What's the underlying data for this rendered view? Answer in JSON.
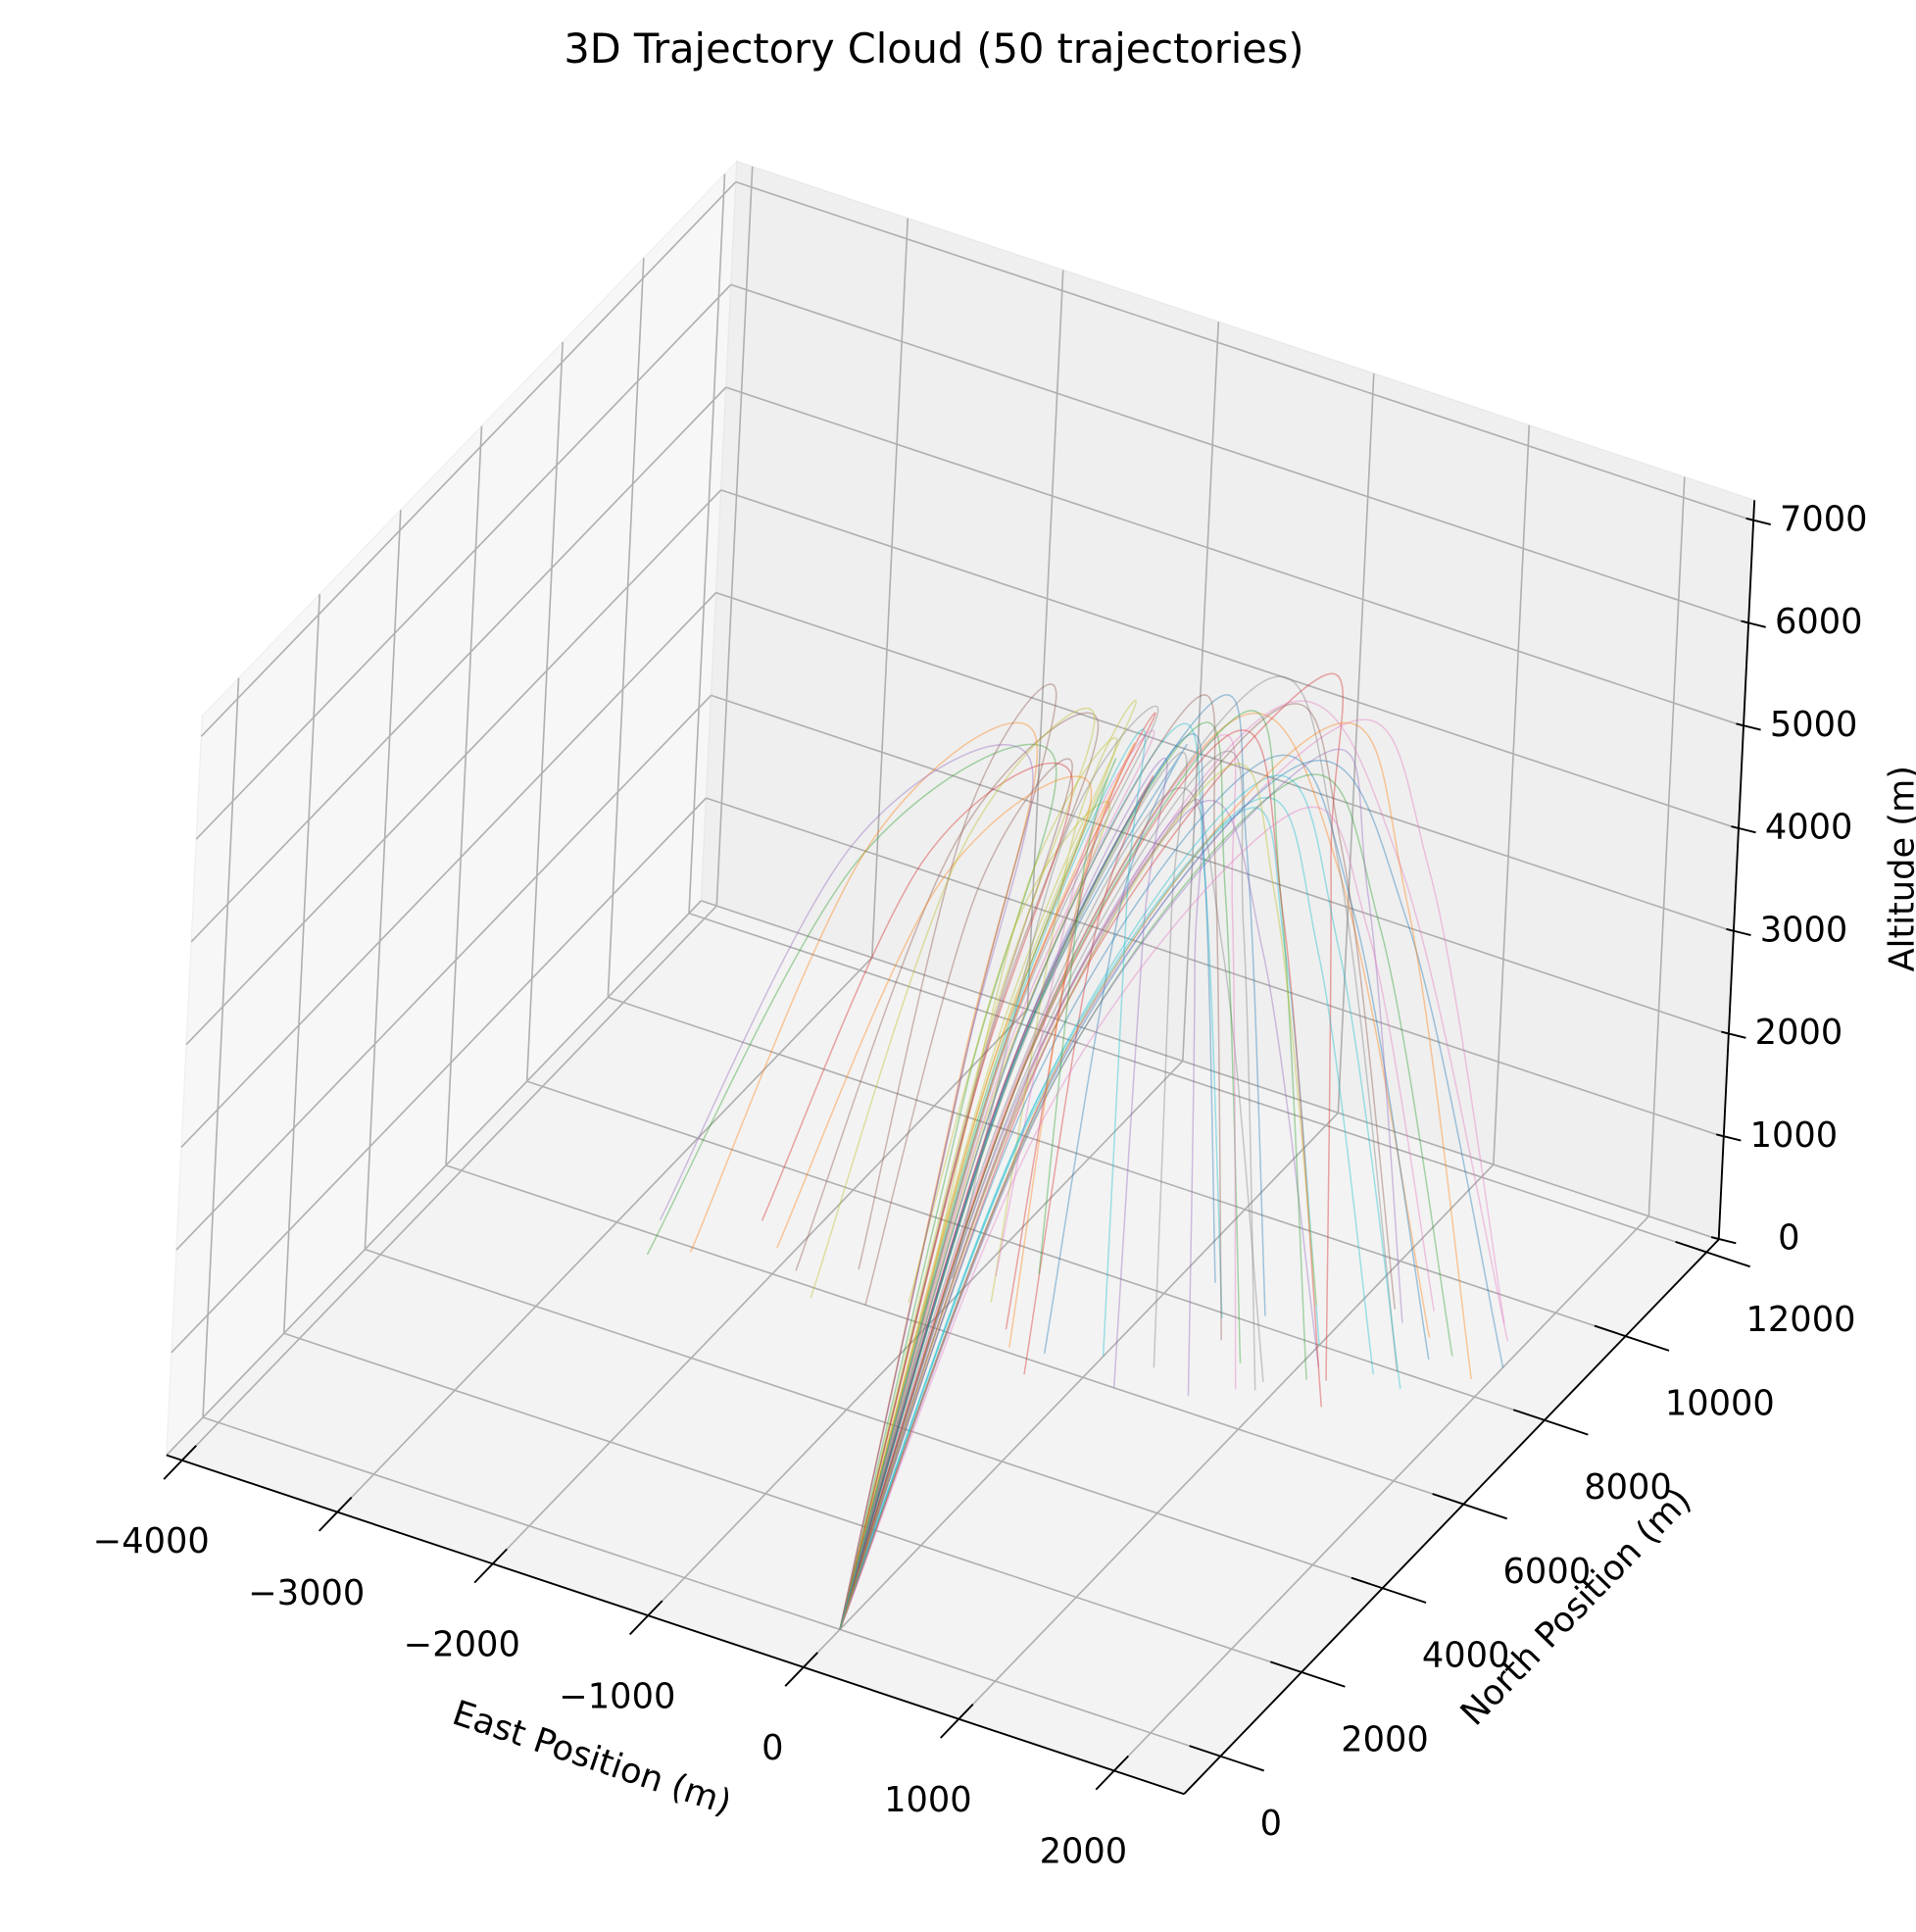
{
  "chart_data": {
    "type": "line3d",
    "title": "3D Trajectory Cloud (50 trajectories)",
    "xlabel": "East Position (m)",
    "ylabel": "North Position (m)",
    "zlabel": "Altitude (m)",
    "xlim": [
      -4100,
      2450
    ],
    "ylim": [
      -900,
      12300
    ],
    "zlim": [
      0,
      7200
    ],
    "xticks": [
      {
        "value": -4000,
        "label": "−4000"
      },
      {
        "value": -3000,
        "label": "−3000"
      },
      {
        "value": -2000,
        "label": "−2000"
      },
      {
        "value": -1000,
        "label": "−1000"
      },
      0,
      1000,
      2000
    ],
    "yticks": [
      0,
      2000,
      4000,
      6000,
      8000,
      10000,
      12000
    ],
    "zticks": [
      0,
      1000,
      2000,
      3000,
      4000,
      5000,
      6000,
      7000
    ],
    "grid": true,
    "alpha": 0.4,
    "series": [
      {
        "color": "#1f77b4",
        "x": [
          0,
          60,
          200,
          -50,
          -300
        ],
        "y": [
          0,
          3500,
          7000,
          6600,
          6200
        ],
        "z": [
          0,
          4060,
          5800,
          4350,
          0
        ]
      },
      {
        "color": "#ff7f0e",
        "x": [
          0,
          120,
          400,
          950,
          1500
        ],
        "y": [
          0,
          3750,
          7500,
          8150,
          8800
        ],
        "z": [
          0,
          4200,
          6000,
          4500,
          0
        ]
      },
      {
        "color": "#2ca02c",
        "x": [
          0,
          -150,
          -500,
          -1600,
          -2700
        ],
        "y": [
          0,
          3250,
          6500,
          6050,
          5600
        ],
        "z": [
          0,
          3920,
          5600,
          4200,
          0
        ]
      },
      {
        "color": "#d62728",
        "x": [
          0,
          240,
          800,
          1000,
          1200
        ],
        "y": [
          0,
          4000,
          8000,
          7700,
          7400
        ],
        "z": [
          0,
          4480,
          6400,
          4800,
          0
        ]
      },
      {
        "color": "#9467bd",
        "x": [
          0,
          0,
          0,
          100,
          200
        ],
        "y": [
          0,
          3600,
          7200,
          6600,
          6000
        ],
        "z": [
          0,
          3850,
          5500,
          4125,
          0
        ]
      },
      {
        "color": "#8c564b",
        "x": [
          0,
          -90,
          -300,
          -1100,
          -1900
        ],
        "y": [
          0,
          3400,
          6800,
          6500,
          6200
        ],
        "z": [
          0,
          4130,
          5900,
          4425,
          0
        ]
      },
      {
        "color": "#e377c2",
        "x": [
          0,
          180,
          600,
          1250,
          1900
        ],
        "y": [
          0,
          3900,
          7800,
          8500,
          9200
        ],
        "z": [
          0,
          4270,
          6100,
          4575,
          0
        ]
      },
      {
        "color": "#7f7f7f",
        "x": [
          0,
          30,
          100,
          500,
          900
        ],
        "y": [
          0,
          3550,
          7100,
          7050,
          7000
        ],
        "z": [
          0,
          3710,
          5300,
          3975,
          0
        ]
      },
      {
        "color": "#bcbd22",
        "x": [
          0,
          -60,
          -200,
          -600,
          -1000
        ],
        "y": [
          0,
          3450,
          6900,
          6350,
          5800
        ],
        "z": [
          0,
          3990,
          5700,
          4275,
          0
        ]
      },
      {
        "color": "#17becf",
        "x": [
          0,
          150,
          500,
          950,
          1400
        ],
        "y": [
          0,
          3800,
          7600,
          7700,
          7800
        ],
        "z": [
          0,
          3640,
          5200,
          3900,
          0
        ]
      },
      {
        "color": "#1f77b4",
        "x": [
          0,
          90,
          300,
          450,
          600
        ],
        "y": [
          0,
          3650,
          7300,
          7750,
          8200
        ],
        "z": [
          0,
          4340,
          6200,
          4650,
          0
        ]
      },
      {
        "color": "#ff7f0e",
        "x": [
          0,
          -180,
          -600,
          -1550,
          -2500
        ],
        "y": [
          0,
          3200,
          6400,
          6150,
          5900
        ],
        "z": [
          0,
          4060,
          5800,
          4350,
          0
        ]
      },
      {
        "color": "#2ca02c",
        "x": [
          0,
          210,
          700,
          1200,
          1700
        ],
        "y": [
          0,
          3950,
          7900,
          8250,
          8600
        ],
        "z": [
          0,
          3780,
          5400,
          4050,
          0
        ]
      },
      {
        "color": "#d62728",
        "x": [
          0,
          0,
          0,
          -300,
          -600
        ],
        "y": [
          0,
          3500,
          7000,
          6700,
          6400
        ],
        "z": [
          0,
          4200,
          6000,
          4500,
          0
        ]
      },
      {
        "color": "#9467bd",
        "x": [
          0,
          60,
          200,
          650,
          1100
        ],
        "y": [
          0,
          3700,
          7400,
          7500,
          7600
        ],
        "z": [
          0,
          3570,
          5100,
          3825,
          0
        ]
      },
      {
        "color": "#8c564b",
        "x": [
          0,
          -120,
          -400,
          -900,
          -1400
        ],
        "y": [
          0,
          3300,
          6600,
          6300,
          6000
        ],
        "z": [
          0,
          3850,
          5500,
          4125,
          0
        ]
      },
      {
        "color": "#e377c2",
        "x": [
          0,
          270,
          900,
          1350,
          1800
        ],
        "y": [
          0,
          4100,
          8200,
          8850,
          9500
        ],
        "z": [
          0,
          4130,
          5900,
          4425,
          0
        ]
      },
      {
        "color": "#7f7f7f",
        "x": [
          0,
          30,
          100,
          200,
          300
        ],
        "y": [
          0,
          3600,
          7200,
          6900,
          6600
        ],
        "z": [
          0,
          3920,
          5600,
          4200,
          0
        ]
      },
      {
        "color": "#bcbd22",
        "x": [
          0,
          -30,
          -100,
          -450,
          -800
        ],
        "y": [
          0,
          3450,
          6900,
          6850,
          6800
        ],
        "z": [
          0,
          4270,
          6100,
          4575,
          0
        ]
      },
      {
        "color": "#17becf",
        "x": [
          0,
          120,
          400,
          700,
          1000
        ],
        "y": [
          0,
          3850,
          7700,
          7850,
          8000
        ],
        "z": [
          0,
          3500,
          5000,
          3750,
          0
        ]
      },
      {
        "color": "#1f77b4",
        "x": [
          0,
          180,
          600,
          1100,
          1600
        ],
        "y": [
          0,
          3750,
          7500,
          7950,
          8400
        ],
        "z": [
          0,
          3990,
          5700,
          4275,
          0
        ]
      },
      {
        "color": "#ff7f0e",
        "x": [
          0,
          -90,
          -300,
          -1200,
          -2100
        ],
        "y": [
          0,
          3350,
          6700,
          6600,
          6500
        ],
        "z": [
          0,
          3710,
          5300,
          3975,
          0
        ]
      },
      {
        "color": "#2ca02c",
        "x": [
          0,
          60,
          200,
          450,
          700
        ],
        "y": [
          0,
          3650,
          7300,
          7250,
          7200
        ],
        "z": [
          0,
          4130,
          5900,
          4425,
          0
        ]
      },
      {
        "color": "#d62728",
        "x": [
          0,
          0,
          0,
          -150,
          -300
        ],
        "y": [
          0,
          3500,
          7000,
          6350,
          5700
        ],
        "z": [
          0,
          3780,
          5400,
          4050,
          0
        ]
      },
      {
        "color": "#9467bd",
        "x": [
          0,
          240,
          800,
          1050,
          1300
        ],
        "y": [
          0,
          4050,
          8100,
          8500,
          8900
        ],
        "z": [
          0,
          3920,
          5600,
          4200,
          0
        ]
      },
      {
        "color": "#8c564b",
        "x": [
          0,
          -150,
          -500,
          -1050,
          -1600
        ],
        "y": [
          0,
          3250,
          6500,
          6550,
          6600
        ],
        "z": [
          0,
          4340,
          6200,
          4650,
          0
        ]
      },
      {
        "color": "#e377c2",
        "x": [
          0,
          90,
          300,
          550,
          800
        ],
        "y": [
          0,
          3700,
          7400,
          7050,
          6700
        ],
        "z": [
          0,
          4060,
          5800,
          4350,
          0
        ]
      },
      {
        "color": "#7f7f7f",
        "x": [
          0,
          150,
          500,
          1000,
          1500
        ],
        "y": [
          0,
          3900,
          7800,
          7900,
          8000
        ],
        "z": [
          0,
          4410,
          6300,
          4725,
          0
        ]
      },
      {
        "color": "#bcbd22",
        "x": [
          0,
          -60,
          -200,
          -700,
          -1200
        ],
        "y": [
          0,
          3400,
          6800,
          6550,
          6300
        ],
        "z": [
          0,
          3570,
          5100,
          3825,
          0
        ]
      },
      {
        "color": "#17becf",
        "x": [
          0,
          30,
          100,
          250,
          400
        ],
        "y": [
          0,
          3550,
          7100,
          7500,
          7900
        ],
        "z": [
          0,
          4130,
          5900,
          4425,
          0
        ]
      },
      {
        "color": "#1f77b4",
        "x": [
          0,
          210,
          700,
          1350,
          2000
        ],
        "y": [
          0,
          4000,
          8000,
          8350,
          8700
        ],
        "z": [
          0,
          3850,
          5500,
          4125,
          0
        ]
      },
      {
        "color": "#ff7f0e",
        "x": [
          0,
          -30,
          -100,
          -300,
          -500
        ],
        "y": [
          0,
          3450,
          6900,
          6500,
          6100
        ],
        "z": [
          0,
          3990,
          5700,
          4275,
          0
        ]
      },
      {
        "color": "#2ca02c",
        "x": [
          0,
          120,
          400,
          750,
          1100
        ],
        "y": [
          0,
          3800,
          7600,
          7450,
          7300
        ],
        "z": [
          0,
          4200,
          6000,
          4500,
          0
        ]
      },
      {
        "color": "#d62728",
        "x": [
          0,
          -120,
          -400,
          -1350,
          -2300
        ],
        "y": [
          0,
          3300,
          6600,
          6750,
          6900
        ],
        "z": [
          0,
          3780,
          5400,
          4050,
          0
        ]
      },
      {
        "color": "#9467bd",
        "x": [
          0,
          60,
          200,
          400,
          600
        ],
        "y": [
          0,
          3600,
          7200,
          6750,
          6300
        ],
        "z": [
          0,
          3640,
          5200,
          3900,
          0
        ]
      },
      {
        "color": "#8c564b",
        "x": [
          0,
          180,
          600,
          900,
          1200
        ],
        "y": [
          0,
          3850,
          7700,
          8400,
          9100
        ],
        "z": [
          0,
          4270,
          6100,
          4575,
          0
        ]
      },
      {
        "color": "#e377c2",
        "x": [
          0,
          0,
          0,
          -450,
          -900
        ],
        "y": [
          0,
          3500,
          7000,
          7150,
          7300
        ],
        "z": [
          0,
          4060,
          5800,
          4350,
          0
        ]
      },
      {
        "color": "#7f7f7f",
        "x": [
          0,
          90,
          300,
          600,
          900
        ],
        "y": [
          0,
          3750,
          7500,
          7150,
          6800
        ],
        "z": [
          0,
          3920,
          5600,
          4200,
          0
        ]
      },
      {
        "color": "#bcbd22",
        "x": [
          0,
          -90,
          -300,
          -1000,
          -1700
        ],
        "y": [
          0,
          3350,
          6700,
          6250,
          5800
        ],
        "z": [
          0,
          4200,
          6000,
          4500,
          0
        ]
      },
      {
        "color": "#17becf",
        "x": [
          0,
          150,
          500,
          1050,
          1600
        ],
        "y": [
          0,
          3950,
          7900,
          7800,
          7700
        ],
        "z": [
          0,
          3710,
          5300,
          3975,
          0
        ]
      },
      {
        "color": "#1f77b4",
        "x": [
          0,
          30,
          100,
          150,
          200
        ],
        "y": [
          0,
          3650,
          7300,
          7900,
          8500
        ],
        "z": [
          0,
          3990,
          5700,
          4275,
          0
        ]
      },
      {
        "color": "#ff7f0e",
        "x": [
          0,
          240,
          800,
          1350,
          1900
        ],
        "y": [
          0,
          4150,
          8300,
          8300,
          8300
        ],
        "z": [
          0,
          4060,
          5800,
          4350,
          0
        ]
      },
      {
        "color": "#2ca02c",
        "x": [
          0,
          -60,
          -200,
          -450,
          -700
        ],
        "y": [
          0,
          3400,
          6800,
          7200,
          7600
        ],
        "z": [
          0,
          3850,
          5500,
          4125,
          0
        ]
      },
      {
        "color": "#d62728",
        "x": [
          0,
          120,
          400,
          850,
          1300
        ],
        "y": [
          0,
          3700,
          7400,
          7150,
          6900
        ],
        "z": [
          0,
          4130,
          5900,
          4425,
          0
        ]
      },
      {
        "color": "#9467bd",
        "x": [
          0,
          -180,
          -600,
          -1700,
          -2800
        ],
        "y": [
          0,
          3150,
          6300,
          6300,
          6300
        ],
        "z": [
          0,
          3920,
          5600,
          4200,
          0
        ]
      },
      {
        "color": "#8c564b",
        "x": [
          0,
          60,
          200,
          350,
          500
        ],
        "y": [
          0,
          3600,
          7200,
          7350,
          7500
        ],
        "z": [
          0,
          4340,
          6200,
          4650,
          0
        ]
      },
      {
        "color": "#e377c2",
        "x": [
          0,
          210,
          700,
          1050,
          1400
        ],
        "y": [
          0,
          3900,
          7800,
          8550,
          9300
        ],
        "z": [
          0,
          3570,
          5100,
          3825,
          0
        ]
      },
      {
        "color": "#7f7f7f",
        "x": [
          0,
          0,
          0,
          -550,
          -1100
        ],
        "y": [
          0,
          3550,
          7100,
          7050,
          7000
        ],
        "z": [
          0,
          4200,
          6000,
          4500,
          0
        ]
      },
      {
        "color": "#bcbd22",
        "x": [
          0,
          90,
          300,
          550,
          800
        ],
        "y": [
          0,
          3800,
          7600,
          8150,
          8700
        ],
        "z": [
          0,
          3780,
          5400,
          4050,
          0
        ]
      },
      {
        "color": "#17becf",
        "x": [
          0,
          -30,
          -100,
          -50,
          0
        ],
        "y": [
          0,
          3500,
          7000,
          6750,
          6500
        ],
        "z": [
          0,
          4060,
          5800,
          4350,
          0
        ]
      }
    ]
  }
}
